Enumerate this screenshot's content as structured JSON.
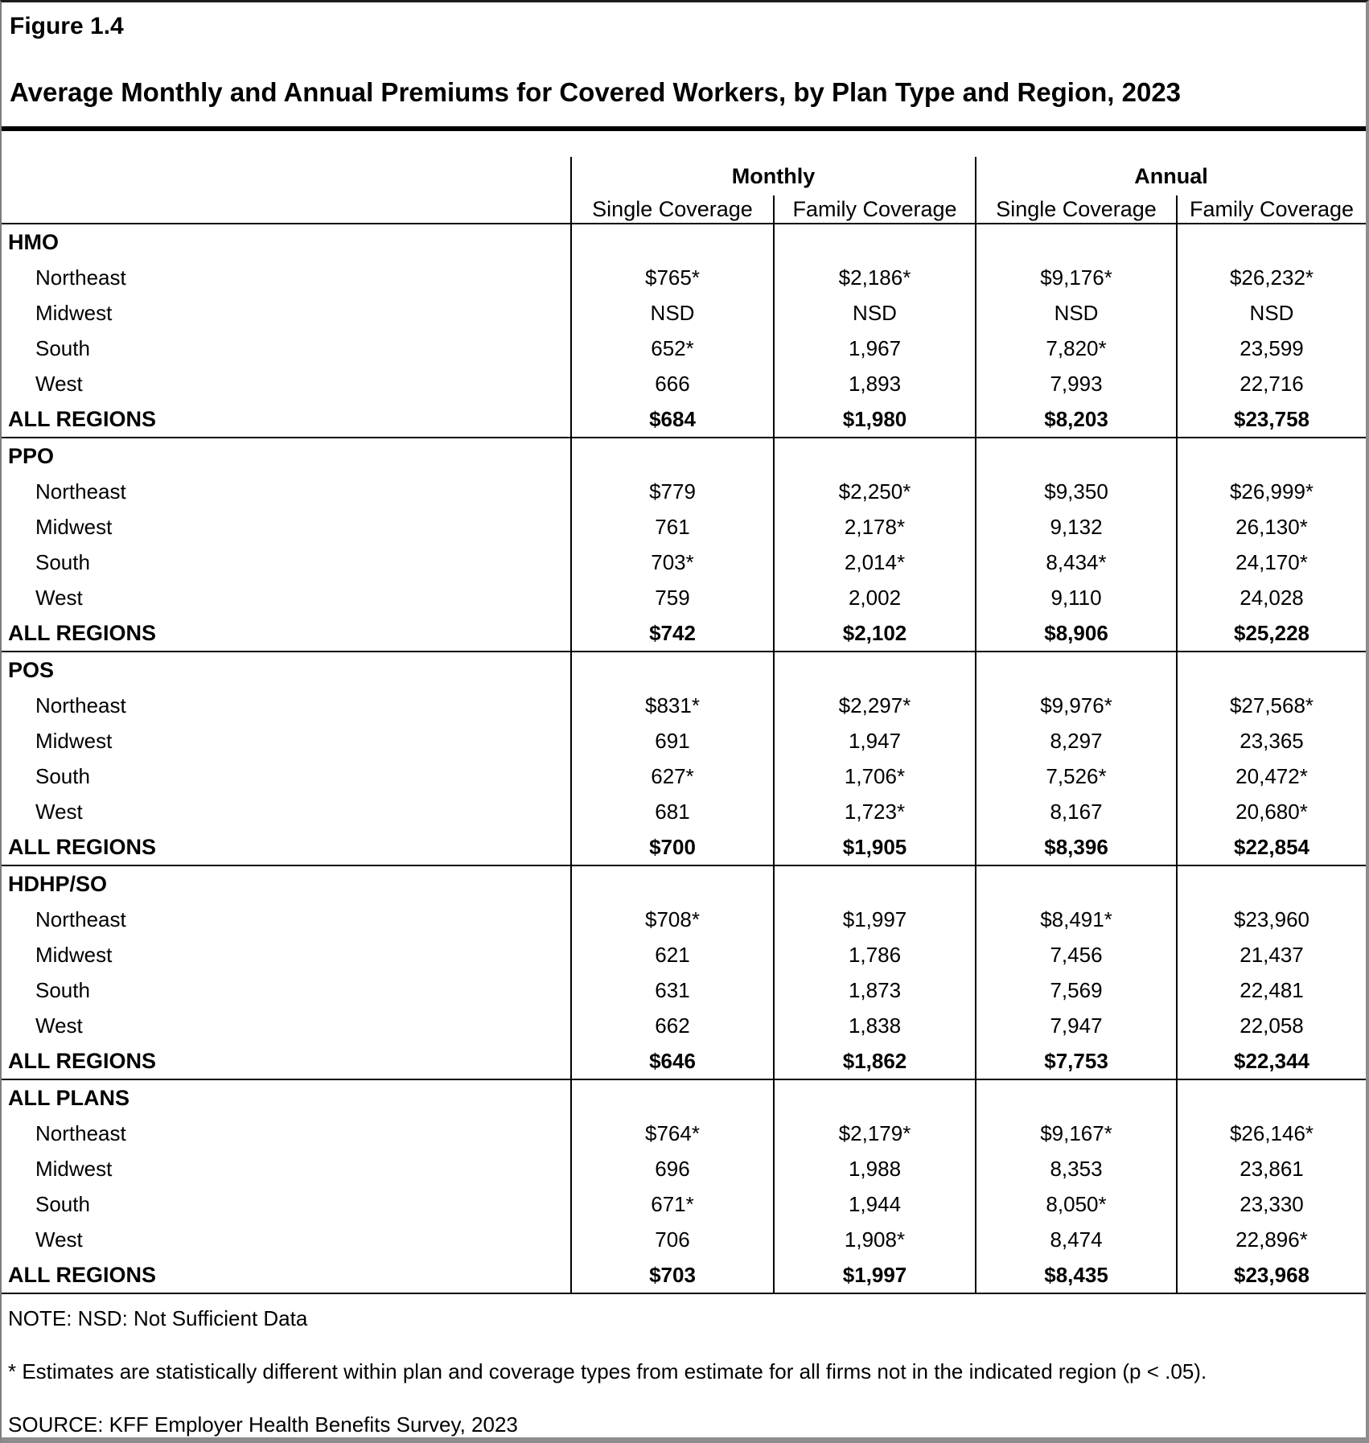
{
  "header": {
    "figure_label": "Figure 1.4",
    "title": "Average Monthly and Annual Premiums for Covered Workers, by Plan Type and Region, 2023"
  },
  "table": {
    "group_headers": [
      "Monthly",
      "Annual"
    ],
    "sub_headers": [
      "Single Coverage",
      "Family Coverage",
      "Single Coverage",
      "Family Coverage"
    ],
    "sections": [
      {
        "plan": "HMO",
        "rows": [
          {
            "region": "Northeast",
            "values": [
              "$765*",
              "$2,186*",
              "$9,176*",
              "$26,232*"
            ]
          },
          {
            "region": "Midwest",
            "values": [
              "NSD",
              "NSD",
              "NSD",
              "NSD"
            ]
          },
          {
            "region": "South",
            "values": [
              "652*",
              "1,967",
              "7,820*",
              "23,599"
            ]
          },
          {
            "region": "West",
            "values": [
              "666",
              "1,893",
              "7,993",
              "22,716"
            ]
          }
        ],
        "all_regions": {
          "label": "ALL REGIONS",
          "values": [
            "$684",
            "$1,980",
            "$8,203",
            "$23,758"
          ]
        }
      },
      {
        "plan": "PPO",
        "rows": [
          {
            "region": "Northeast",
            "values": [
              "$779",
              "$2,250*",
              "$9,350",
              "$26,999*"
            ]
          },
          {
            "region": "Midwest",
            "values": [
              "761",
              "2,178*",
              "9,132",
              "26,130*"
            ]
          },
          {
            "region": "South",
            "values": [
              "703*",
              "2,014*",
              "8,434*",
              "24,170*"
            ]
          },
          {
            "region": "West",
            "values": [
              "759",
              "2,002",
              "9,110",
              "24,028"
            ]
          }
        ],
        "all_regions": {
          "label": "ALL REGIONS",
          "values": [
            "$742",
            "$2,102",
            "$8,906",
            "$25,228"
          ]
        }
      },
      {
        "plan": "POS",
        "rows": [
          {
            "region": "Northeast",
            "values": [
              "$831*",
              "$2,297*",
              "$9,976*",
              "$27,568*"
            ]
          },
          {
            "region": "Midwest",
            "values": [
              "691",
              "1,947",
              "8,297",
              "23,365"
            ]
          },
          {
            "region": "South",
            "values": [
              "627*",
              "1,706*",
              "7,526*",
              "20,472*"
            ]
          },
          {
            "region": "West",
            "values": [
              "681",
              "1,723*",
              "8,167",
              "20,680*"
            ]
          }
        ],
        "all_regions": {
          "label": "ALL REGIONS",
          "values": [
            "$700",
            "$1,905",
            "$8,396",
            "$22,854"
          ]
        }
      },
      {
        "plan": "HDHP/SO",
        "rows": [
          {
            "region": "Northeast",
            "values": [
              "$708*",
              "$1,997",
              "$8,491*",
              "$23,960"
            ]
          },
          {
            "region": "Midwest",
            "values": [
              "621",
              "1,786",
              "7,456",
              "21,437"
            ]
          },
          {
            "region": "South",
            "values": [
              "631",
              "1,873",
              "7,569",
              "22,481"
            ]
          },
          {
            "region": "West",
            "values": [
              "662",
              "1,838",
              "7,947",
              "22,058"
            ]
          }
        ],
        "all_regions": {
          "label": "ALL REGIONS",
          "values": [
            "$646",
            "$1,862",
            "$7,753",
            "$22,344"
          ]
        }
      },
      {
        "plan": "ALL PLANS",
        "rows": [
          {
            "region": "Northeast",
            "values": [
              "$764*",
              "$2,179*",
              "$9,167*",
              "$26,146*"
            ]
          },
          {
            "region": "Midwest",
            "values": [
              "696",
              "1,988",
              "8,353",
              "23,861"
            ]
          },
          {
            "region": "South",
            "values": [
              "671*",
              "1,944",
              "8,050*",
              "23,330"
            ]
          },
          {
            "region": "West",
            "values": [
              "706",
              "1,908*",
              "8,474",
              "22,896*"
            ]
          }
        ],
        "all_regions": {
          "label": "ALL REGIONS",
          "values": [
            "$703",
            "$1,997",
            "$8,435",
            "$23,968"
          ]
        }
      }
    ]
  },
  "footnotes": {
    "note": "NOTE: NSD: Not Sufficient Data",
    "significance": " * Estimates are statistically different within plan and coverage types from estimate for all firms not in the indicated region (p < .05).",
    "source": "SOURCE: KFF Employer Health Benefits Survey, 2023"
  }
}
